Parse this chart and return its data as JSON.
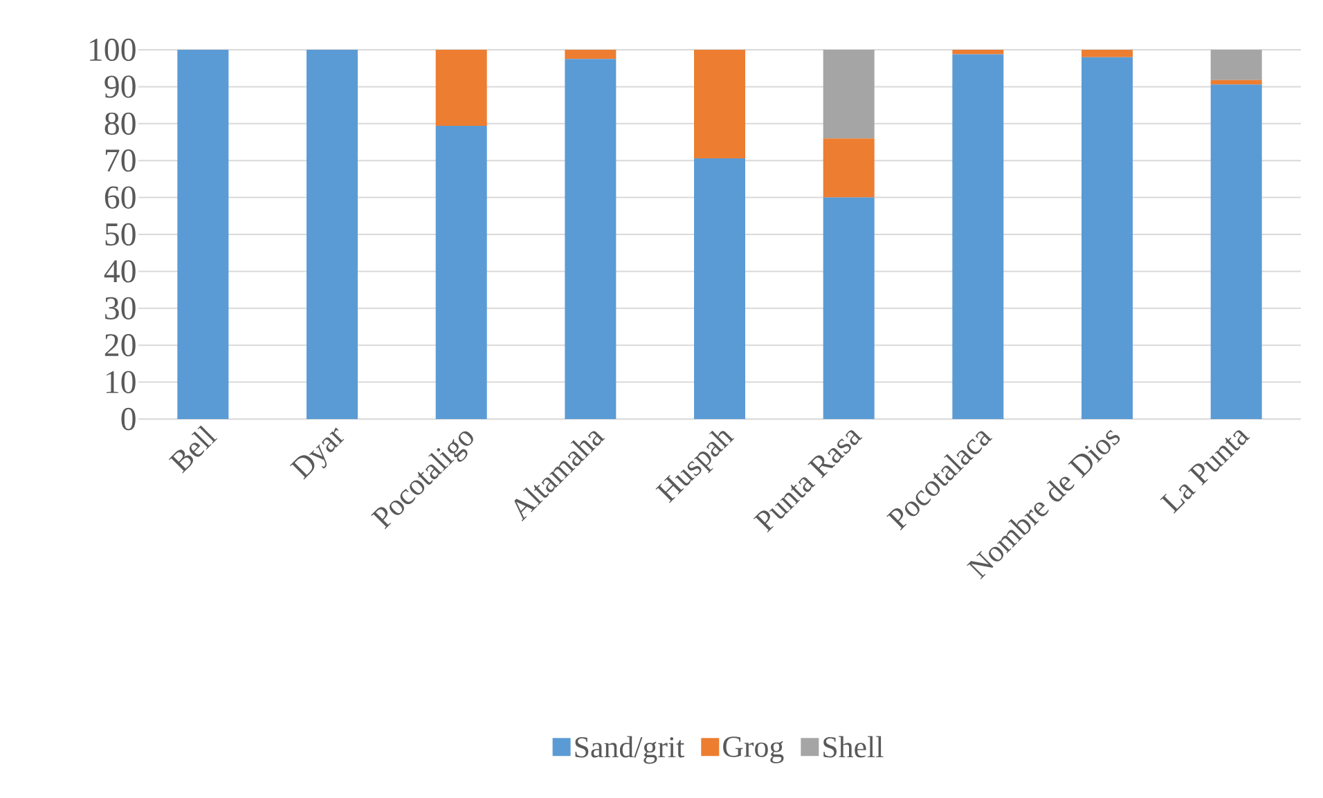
{
  "chart_data": {
    "type": "bar",
    "stacked": true,
    "categories": [
      "Bell",
      "Dyar",
      "Pocotaligo",
      "Altamaha",
      "Huspah",
      "Punta Rasa",
      "Pocotalaca",
      "Nombre de Dios",
      "La Punta"
    ],
    "series": [
      {
        "name": "Sand/grit",
        "color": "#5b9bd5",
        "values": [
          100,
          100,
          79.4,
          97.5,
          70.6,
          60,
          98.8,
          98,
          90.6
        ]
      },
      {
        "name": "Grog",
        "color": "#ed7d31",
        "values": [
          0,
          0,
          20.6,
          2.5,
          29.4,
          16,
          1.2,
          2,
          1.2
        ]
      },
      {
        "name": "Shell",
        "color": "#a5a5a5",
        "values": [
          0,
          0,
          0,
          0,
          0,
          24,
          0,
          0,
          8.2
        ]
      }
    ],
    "ylim": [
      0,
      100
    ],
    "yticks": [
      0,
      10,
      20,
      30,
      40,
      50,
      60,
      70,
      80,
      90,
      100
    ],
    "grid": "y",
    "legend": "bottom"
  }
}
